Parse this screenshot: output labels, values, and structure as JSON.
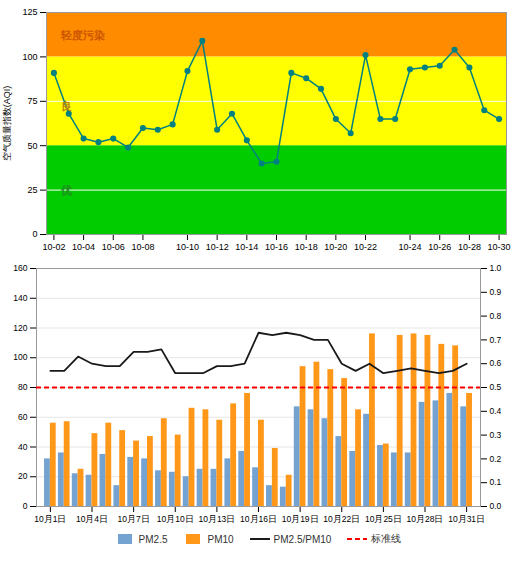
{
  "chart_data": [
    {
      "type": "line",
      "ylabel": "空气质量指数(AQI)",
      "categories": [
        "10-02",
        null,
        "10-04",
        null,
        "10-06",
        null,
        "10-08",
        null,
        null,
        "10-10",
        null,
        "10-12",
        null,
        "10-14",
        null,
        "10-16",
        null,
        "10-18",
        null,
        "10-20",
        null,
        "10-22",
        null,
        null,
        "10-24",
        null,
        "10-26",
        null,
        "10-28",
        null,
        "10-30"
      ],
      "values": [
        91,
        68,
        54,
        52,
        54,
        49,
        60,
        59,
        62,
        92,
        109,
        59,
        68,
        53,
        40,
        41,
        91,
        88,
        82,
        65,
        57,
        101,
        65,
        65,
        93,
        94,
        95,
        104,
        94,
        70,
        65
      ],
      "color": "#008080",
      "marker": "circle",
      "ylim": [
        0,
        125
      ],
      "yticks": [
        0,
        25,
        50,
        75,
        100,
        125
      ],
      "bands": [
        {
          "ymin": 0,
          "ymax": 50,
          "color": "#00cc00"
        },
        {
          "ymin": 50,
          "ymax": 100,
          "color": "#ffff00"
        },
        {
          "ymin": 100,
          "ymax": 125,
          "color": "#ff8c00"
        }
      ],
      "hlines": [
        {
          "y": 25,
          "color": "white"
        },
        {
          "y": 75,
          "color": "white"
        }
      ],
      "annotations": [
        {
          "text": "优",
          "y": 25,
          "color": "#228B22"
        },
        {
          "text": "良",
          "y": 72,
          "color": "#b8860b"
        },
        {
          "text": "轻度污染",
          "y": 112,
          "color": "#cc5500"
        }
      ]
    },
    {
      "type": "bar",
      "categories": [
        "10月1日",
        null,
        null,
        "10月4日",
        null,
        null,
        "10月7日",
        null,
        null,
        "10月10日",
        null,
        null,
        "10月13日",
        null,
        null,
        "10月16日",
        null,
        null,
        "10月19日",
        null,
        null,
        "10月22日",
        null,
        null,
        "10月25日",
        null,
        null,
        "10月28日",
        null,
        null,
        "10月31日"
      ],
      "series": [
        {
          "name": "PM2.5",
          "color": "#6699cc",
          "values": [
            32,
            36,
            22,
            21,
            35,
            14,
            33,
            32,
            24,
            23,
            20,
            25,
            25,
            32,
            37,
            26,
            14,
            13,
            67,
            65,
            59,
            47,
            37,
            62,
            41,
            36,
            36,
            70,
            71,
            76,
            67
          ]
        },
        {
          "name": "PM10",
          "color": "#ff8c00",
          "values": [
            56,
            57,
            25,
            49,
            56,
            51,
            44,
            47,
            59,
            48,
            66,
            65,
            58,
            69,
            76,
            58,
            39,
            21,
            94,
            97,
            92,
            86,
            65,
            116,
            42,
            115,
            116,
            115,
            109,
            108,
            76
          ]
        },
        {
          "name": "PM2.5/PM10",
          "type": "line",
          "axis": "y2",
          "color": "#1a1a1a",
          "line_style": "solid",
          "values": [
            0.57,
            0.57,
            0.63,
            0.6,
            0.59,
            0.59,
            0.65,
            0.65,
            0.66,
            0.56,
            0.56,
            0.56,
            0.59,
            0.59,
            0.6,
            0.73,
            0.72,
            0.73,
            0.72,
            0.7,
            0.7,
            0.6,
            0.57,
            0.6,
            0.56,
            0.57,
            0.58,
            0.57,
            0.56,
            0.57,
            0.6
          ]
        },
        {
          "name": "标准线",
          "type": "hline",
          "axis": "y2",
          "color": "#ff0000",
          "line_style": "dashed",
          "value": 0.5
        }
      ],
      "ylim": [
        0,
        160
      ],
      "yticks": [
        0,
        20,
        40,
        60,
        80,
        100,
        120,
        140,
        160
      ],
      "y2lim": [
        0,
        1.0
      ],
      "y2ticks": [
        {
          "value": 0,
          "label": "0.0"
        },
        0.1,
        0.2,
        0.3,
        0.4,
        0.5,
        0.6,
        0.7,
        0.8,
        0.9,
        {
          "value": 1.0,
          "label": "1.0"
        }
      ],
      "grid": true,
      "legend": "bottom"
    }
  ]
}
